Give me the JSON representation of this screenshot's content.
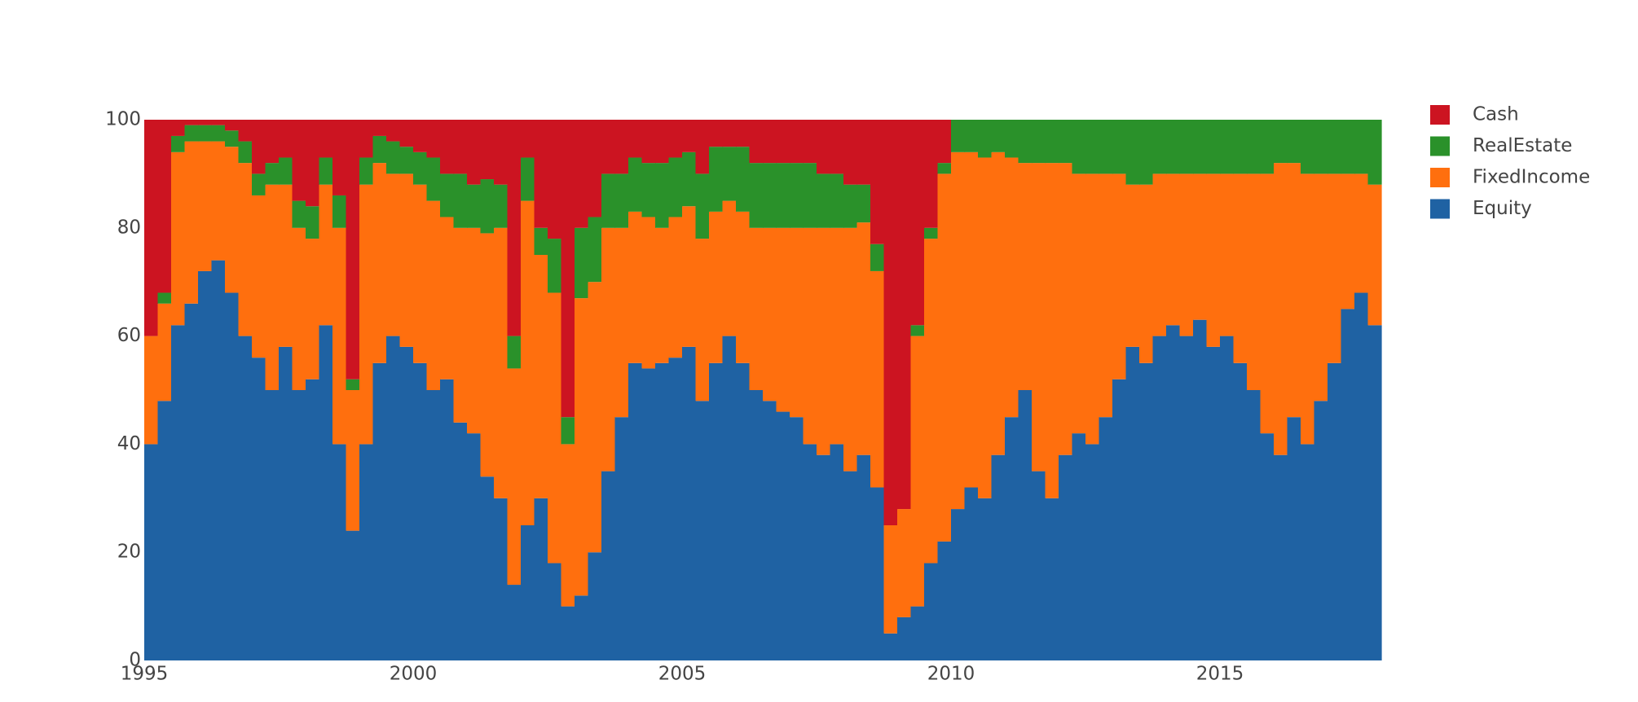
{
  "chart_data": {
    "type": "stacked_bar",
    "x": [
      1995.0,
      1995.25,
      1995.5,
      1995.75,
      1996.0,
      1996.25,
      1996.5,
      1996.75,
      1997.0,
      1997.25,
      1997.5,
      1997.75,
      1998.0,
      1998.25,
      1998.5,
      1998.75,
      1999.0,
      1999.25,
      1999.5,
      1999.75,
      2000.0,
      2000.25,
      2000.5,
      2000.75,
      2001.0,
      2001.25,
      2001.5,
      2001.75,
      2002.0,
      2002.25,
      2002.5,
      2002.75,
      2003.0,
      2003.25,
      2003.5,
      2003.75,
      2004.0,
      2004.25,
      2004.5,
      2004.75,
      2005.0,
      2005.25,
      2005.5,
      2005.75,
      2006.0,
      2006.25,
      2006.5,
      2006.75,
      2007.0,
      2007.25,
      2007.5,
      2007.75,
      2008.0,
      2008.25,
      2008.5,
      2008.75,
      2009.0,
      2009.25,
      2009.5,
      2009.75,
      2010.0,
      2010.25,
      2010.5,
      2010.75,
      2011.0,
      2011.25,
      2011.5,
      2011.75,
      2012.0,
      2012.25,
      2012.5,
      2012.75,
      2013.0,
      2013.25,
      2013.5,
      2013.75,
      2014.0,
      2014.25,
      2014.5,
      2014.75,
      2015.0,
      2015.25,
      2015.5,
      2015.75,
      2016.0,
      2016.25,
      2016.5,
      2016.75,
      2017.0,
      2017.25,
      2017.5,
      2017.75
    ],
    "series": [
      {
        "name": "Equity",
        "color": "#1f62a3",
        "values": [
          40,
          48,
          62,
          66,
          72,
          74,
          68,
          60,
          56,
          50,
          58,
          50,
          52,
          62,
          40,
          24,
          40,
          55,
          60,
          58,
          55,
          50,
          52,
          44,
          42,
          34,
          30,
          14,
          25,
          30,
          18,
          10,
          12,
          20,
          35,
          45,
          55,
          54,
          55,
          56,
          58,
          48,
          55,
          60,
          55,
          50,
          48,
          46,
          45,
          40,
          38,
          40,
          35,
          38,
          32,
          5,
          8,
          10,
          18,
          22,
          28,
          32,
          30,
          38,
          45,
          50,
          35,
          30,
          38,
          42,
          40,
          45,
          52,
          58,
          55,
          60,
          62,
          60,
          63,
          58,
          60,
          55,
          50,
          42,
          38,
          45,
          40,
          48,
          55,
          65,
          68,
          62
        ]
      },
      {
        "name": "FixedIncome",
        "color": "#ff6f0e",
        "values": [
          20,
          18,
          32,
          30,
          24,
          22,
          27,
          32,
          30,
          38,
          30,
          30,
          26,
          26,
          40,
          26,
          48,
          37,
          30,
          32,
          33,
          35,
          30,
          36,
          38,
          45,
          50,
          40,
          60,
          45,
          50,
          30,
          55,
          50,
          45,
          35,
          28,
          28,
          25,
          26,
          26,
          30,
          28,
          25,
          28,
          30,
          32,
          34,
          35,
          40,
          42,
          40,
          45,
          43,
          40,
          20,
          20,
          50,
          60,
          68,
          66,
          62,
          63,
          56,
          48,
          42,
          57,
          62,
          54,
          48,
          50,
          45,
          38,
          30,
          33,
          30,
          28,
          30,
          27,
          32,
          30,
          35,
          40,
          48,
          54,
          47,
          50,
          42,
          35,
          25,
          22,
          26
        ]
      },
      {
        "name": "RealEstate",
        "color": "#2a912a",
        "values": [
          0,
          2,
          3,
          3,
          3,
          3,
          3,
          4,
          4,
          4,
          5,
          5,
          6,
          5,
          6,
          2,
          5,
          5,
          6,
          5,
          6,
          8,
          8,
          10,
          8,
          10,
          8,
          6,
          8,
          5,
          10,
          5,
          13,
          12,
          10,
          10,
          10,
          10,
          12,
          11,
          10,
          12,
          12,
          10,
          12,
          12,
          12,
          12,
          12,
          12,
          10,
          10,
          8,
          7,
          5,
          0,
          0,
          2,
          2,
          2,
          6,
          6,
          7,
          6,
          7,
          8,
          8,
          8,
          8,
          10,
          10,
          10,
          10,
          12,
          12,
          10,
          10,
          10,
          10,
          10,
          10,
          10,
          10,
          10,
          8,
          8,
          10,
          10,
          10,
          10,
          10,
          12
        ]
      },
      {
        "name": "Cash",
        "color": "#cc1421",
        "values": [
          40,
          32,
          3,
          1,
          1,
          1,
          2,
          4,
          10,
          8,
          7,
          15,
          16,
          7,
          14,
          48,
          7,
          3,
          4,
          5,
          6,
          7,
          10,
          10,
          12,
          11,
          12,
          40,
          7,
          20,
          22,
          55,
          20,
          18,
          10,
          10,
          7,
          8,
          8,
          7,
          6,
          10,
          5,
          5,
          5,
          8,
          8,
          8,
          8,
          8,
          10,
          10,
          12,
          12,
          23,
          75,
          72,
          38,
          20,
          8,
          0,
          0,
          0,
          0,
          0,
          0,
          0,
          0,
          0,
          0,
          0,
          0,
          0,
          0,
          0,
          0,
          0,
          0,
          0,
          0,
          0,
          0,
          0,
          0,
          0,
          0,
          0,
          0,
          0,
          0,
          0,
          0
        ]
      }
    ],
    "xlim": [
      1995,
      2018
    ],
    "xticks": [
      1995,
      2000,
      2005,
      2010,
      2015
    ],
    "ylim": [
      0,
      100
    ],
    "yticks": [
      0,
      20,
      40,
      60,
      80,
      100
    ],
    "grid": false,
    "legend": "right"
  }
}
